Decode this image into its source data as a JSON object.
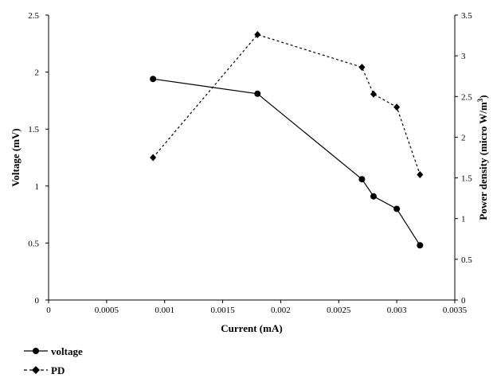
{
  "chart_data": {
    "type": "line",
    "xlabel": "Current (mA)",
    "ylabel": "Voltage (mV)",
    "y2label_prefix": "Power density (micro W/m",
    "y2label_sup": "3",
    "y2label_suffix": ")",
    "xlim": [
      0,
      0.0035
    ],
    "ylim": [
      0,
      2.5
    ],
    "y2lim": [
      0,
      3.5
    ],
    "x_ticks": [
      "0",
      "0.0005",
      "0.001",
      "0.0015",
      "0.002",
      "0.0025",
      "0.003",
      "0.0035"
    ],
    "y_ticks": [
      "0",
      "0.5",
      "1",
      "1.5",
      "2",
      "2.5"
    ],
    "y2_ticks": [
      "0",
      "0.5",
      "1",
      "1.5",
      "2",
      "2.5",
      "3",
      "3.5"
    ],
    "grid": false,
    "legend_position": "bottom-left",
    "series": [
      {
        "name": "voltage",
        "axis": "left",
        "marker": "circle",
        "line_style": "solid",
        "color": "#000000",
        "x": [
          0.0009,
          0.0018,
          0.0027,
          0.0028,
          0.003,
          0.0032
        ],
        "y": [
          1.94,
          1.81,
          1.06,
          0.91,
          0.8,
          0.48
        ]
      },
      {
        "name": "PD",
        "axis": "right",
        "marker": "diamond",
        "line_style": "dashed",
        "color": "#000000",
        "x": [
          0.0009,
          0.0018,
          0.0027,
          0.0028,
          0.003,
          0.0032
        ],
        "y": [
          1.75,
          3.26,
          2.86,
          2.53,
          2.37,
          1.54
        ]
      }
    ]
  }
}
